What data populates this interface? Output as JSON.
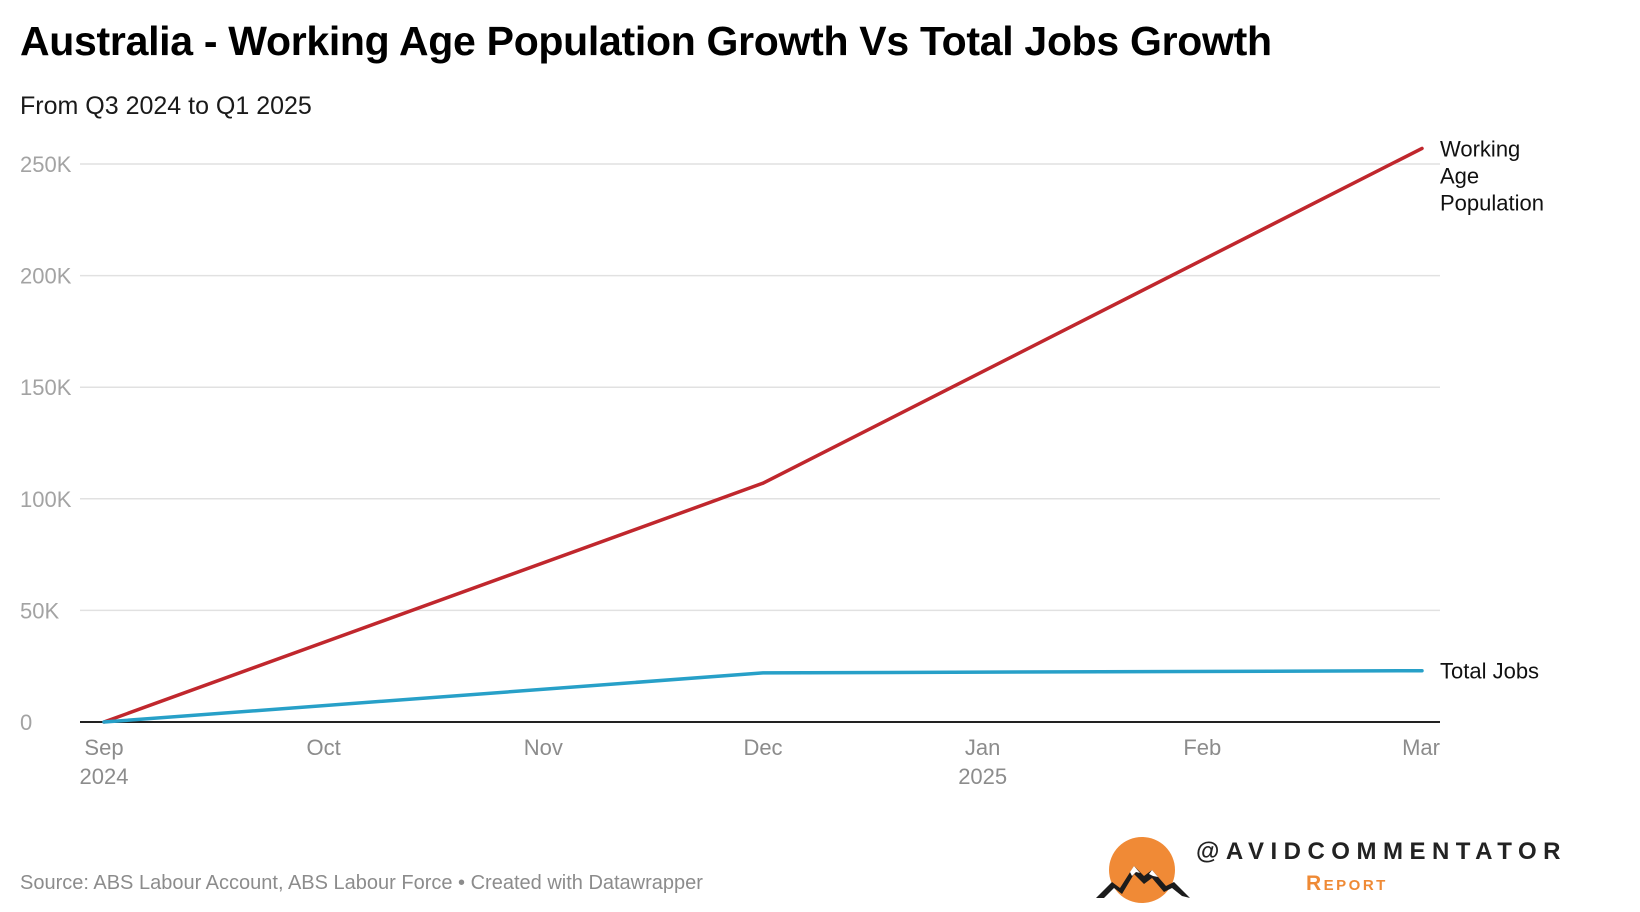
{
  "chart_data": {
    "type": "line",
    "title": "Australia - Working Age Population Growth Vs Total Jobs Growth",
    "subtitle": "From Q3 2024 to Q1 2025",
    "xlabel": "",
    "ylabel": "",
    "x": [
      "2024-09",
      "2024-10",
      "2024-11",
      "2024-12",
      "2025-01",
      "2025-02",
      "2025-03"
    ],
    "x_ticks": [
      {
        "month": 0,
        "label": "Sep",
        "year": "2024"
      },
      {
        "month": 1,
        "label": "Oct",
        "year": ""
      },
      {
        "month": 2,
        "label": "Nov",
        "year": ""
      },
      {
        "month": 3,
        "label": "Dec",
        "year": ""
      },
      {
        "month": 4,
        "label": "Jan",
        "year": "2025"
      },
      {
        "month": 5,
        "label": "Feb",
        "year": ""
      },
      {
        "month": 6,
        "label": "Mar",
        "year": ""
      }
    ],
    "y_ticks": [
      {
        "value": 0,
        "label": "0"
      },
      {
        "value": 50000,
        "label": "50K"
      },
      {
        "value": 100000,
        "label": "100K"
      },
      {
        "value": 150000,
        "label": "150K"
      },
      {
        "value": 200000,
        "label": "200K"
      },
      {
        "value": 250000,
        "label": "250K"
      }
    ],
    "ylim": [
      0,
      250000
    ],
    "grid": true,
    "series": [
      {
        "name": "Working Age Population",
        "label_lines": [
          "Working",
          "Age",
          "Population"
        ],
        "color": "#c0272d",
        "points": [
          {
            "month": 0,
            "value": 0
          },
          {
            "month": 3,
            "value": 107000
          },
          {
            "month": 6,
            "value": 257000
          }
        ]
      },
      {
        "name": "Total Jobs",
        "label_lines": [
          "Total Jobs"
        ],
        "color": "#27a0c8",
        "points": [
          {
            "month": 0,
            "value": 0
          },
          {
            "month": 3,
            "value": 22000
          },
          {
            "month": 6,
            "value": 23000
          }
        ]
      }
    ]
  },
  "footer": {
    "source": "Source: ABS Labour Account, ABS Labour Force • Created with Datawrapper"
  },
  "brand": {
    "handle": "@AVIDCOMMENTATOR",
    "subtitle": "Report",
    "sun_color": "#f08a36",
    "mountain_color": "#1c1c1c"
  }
}
